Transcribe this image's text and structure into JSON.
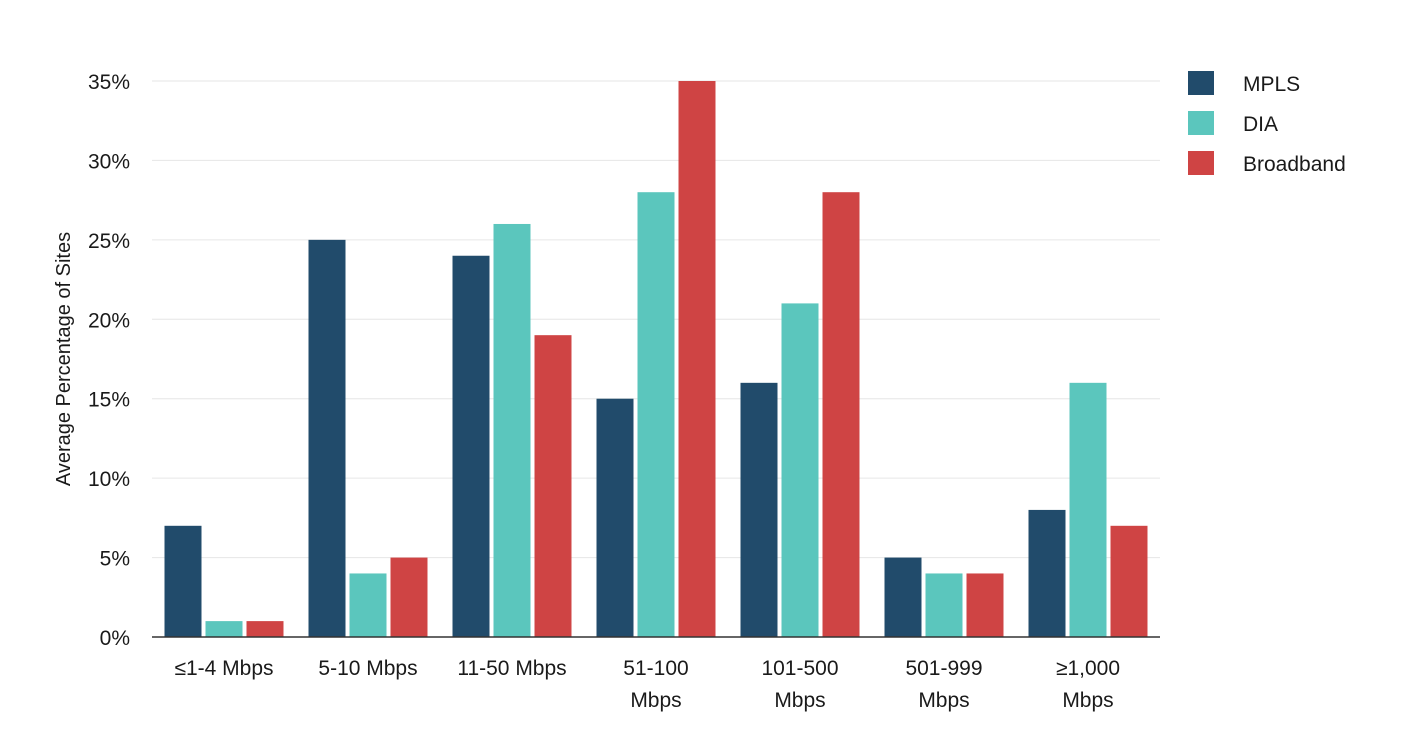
{
  "chart_data": {
    "type": "bar",
    "title": "",
    "xlabel": "",
    "ylabel": "Average Percentage of Sites",
    "ylim": [
      0,
      35
    ],
    "yticks": [
      0,
      5,
      10,
      15,
      20,
      25,
      30,
      35
    ],
    "ytick_labels": [
      "0%",
      "5%",
      "10%",
      "15%",
      "20%",
      "25%",
      "30%",
      "35%"
    ],
    "grid": true,
    "legend_position": "top-right",
    "categories": [
      [
        "≤1-4 Mbps"
      ],
      [
        "5-10 Mbps"
      ],
      [
        "11-50 Mbps"
      ],
      [
        "51-100",
        "Mbps"
      ],
      [
        "101-500",
        "Mbps"
      ],
      [
        "501-999",
        "Mbps"
      ],
      [
        "≥1,000",
        "Mbps"
      ]
    ],
    "series": [
      {
        "name": "MPLS",
        "color": "#214b6b",
        "values": [
          7,
          25,
          24,
          15,
          16,
          5,
          8
        ]
      },
      {
        "name": "DIA",
        "color": "#5bc6bd",
        "values": [
          1,
          4,
          26,
          28,
          21,
          4,
          16
        ]
      },
      {
        "name": "Broadband",
        "color": "#cf4444",
        "values": [
          1,
          5,
          19,
          35,
          28,
          4,
          7
        ]
      }
    ]
  }
}
